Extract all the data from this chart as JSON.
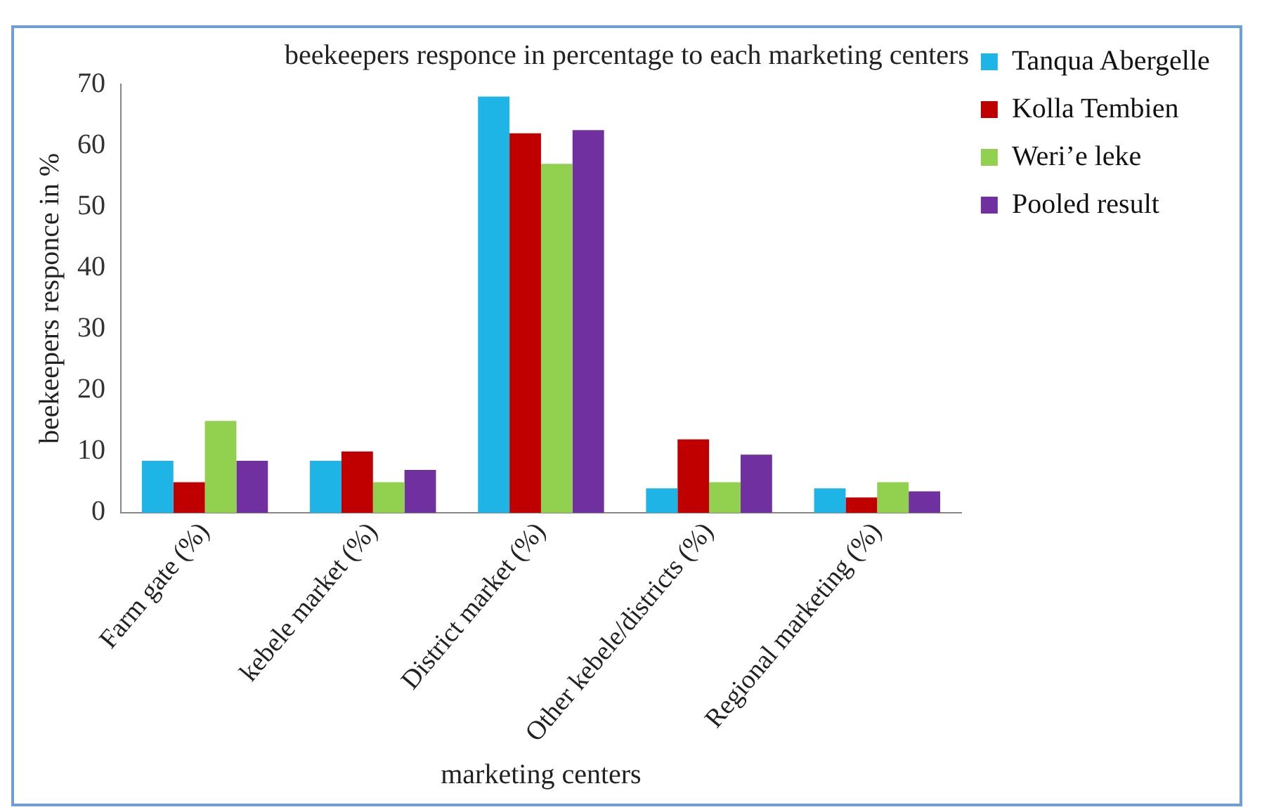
{
  "chart_data": {
    "type": "bar",
    "title": "beekeepers responce in percentage to each marketing centers",
    "xlabel": "marketing centers",
    "ylabel": "beekeepers responce in %",
    "categories": [
      "Farm gate (%)",
      "kebele market (%)",
      "District market (%)",
      "Other kebele/districts (%)",
      "Regional marketing (%)"
    ],
    "series": [
      {
        "name": "Tanqua Abergelle",
        "color": "#1eb4e6",
        "values": [
          8.5,
          8.5,
          68,
          4,
          4
        ]
      },
      {
        "name": "Kolla Tembien",
        "color": "#c00000",
        "values": [
          5,
          10,
          62,
          12,
          2.5
        ]
      },
      {
        "name": "Weri’e leke",
        "color": "#92d050",
        "values": [
          15,
          5,
          57,
          5,
          5
        ]
      },
      {
        "name": "Pooled result",
        "color": "#7030a0",
        "values": [
          8.5,
          7,
          62.5,
          9.5,
          3.5
        ]
      }
    ],
    "ylim": [
      0,
      70
    ],
    "yticks": [
      0,
      10,
      20,
      30,
      40,
      50,
      60,
      70
    ],
    "grid": false,
    "legend": "right"
  }
}
